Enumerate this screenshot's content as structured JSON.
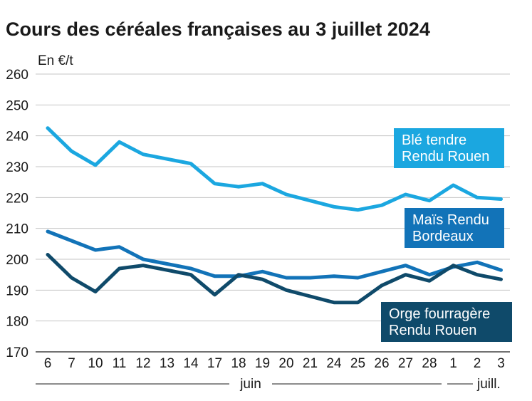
{
  "chart_data": {
    "type": "line",
    "title": "Cours des céréales françaises au 3 juillet 2024",
    "ylabel": "En €/t",
    "xlabel": "",
    "ylim": [
      170,
      260
    ],
    "yticks": [
      170,
      180,
      190,
      200,
      210,
      220,
      230,
      240,
      250,
      260
    ],
    "categories": [
      "6",
      "7",
      "10",
      "11",
      "12",
      "13",
      "14",
      "17",
      "18",
      "19",
      "20",
      "21",
      "24",
      "25",
      "26",
      "27",
      "28",
      "1",
      "2",
      "3"
    ],
    "month_labels": [
      {
        "label": "juin",
        "from_index": 0,
        "to_index": 16
      },
      {
        "label": "juill.",
        "from_index": 17,
        "to_index": 19
      }
    ],
    "grid": "horizontal",
    "series": [
      {
        "name": "Blé tendre Rendu Rouen",
        "name_lines": [
          "Blé tendre",
          "Rendu Rouen"
        ],
        "color": "#1ba7e0",
        "values": [
          242.5,
          235,
          230.5,
          238,
          234,
          232.5,
          231,
          224.5,
          223.5,
          224.5,
          221,
          219,
          217,
          216,
          217.5,
          221,
          219,
          224,
          220,
          219.5
        ]
      },
      {
        "name": "Maïs Rendu Bordeaux",
        "name_lines": [
          "Maïs Rendu",
          "Bordeaux"
        ],
        "color": "#1273b8",
        "values": [
          209,
          206,
          203,
          204,
          200,
          198.5,
          197,
          194.5,
          194.5,
          196,
          194,
          194,
          194.5,
          194,
          196,
          198,
          195,
          197.5,
          199,
          196.5
        ]
      },
      {
        "name": "Orge fourragère Rendu Rouen",
        "name_lines": [
          "Orge fourragère",
          "Rendu Rouen"
        ],
        "color": "#0f4a6a",
        "values": [
          201.5,
          194,
          189.5,
          197,
          198,
          196.5,
          195,
          188.5,
          195,
          193.5,
          190,
          188,
          186,
          186,
          191.5,
          195,
          193,
          198,
          195,
          193.5
        ]
      }
    ]
  }
}
